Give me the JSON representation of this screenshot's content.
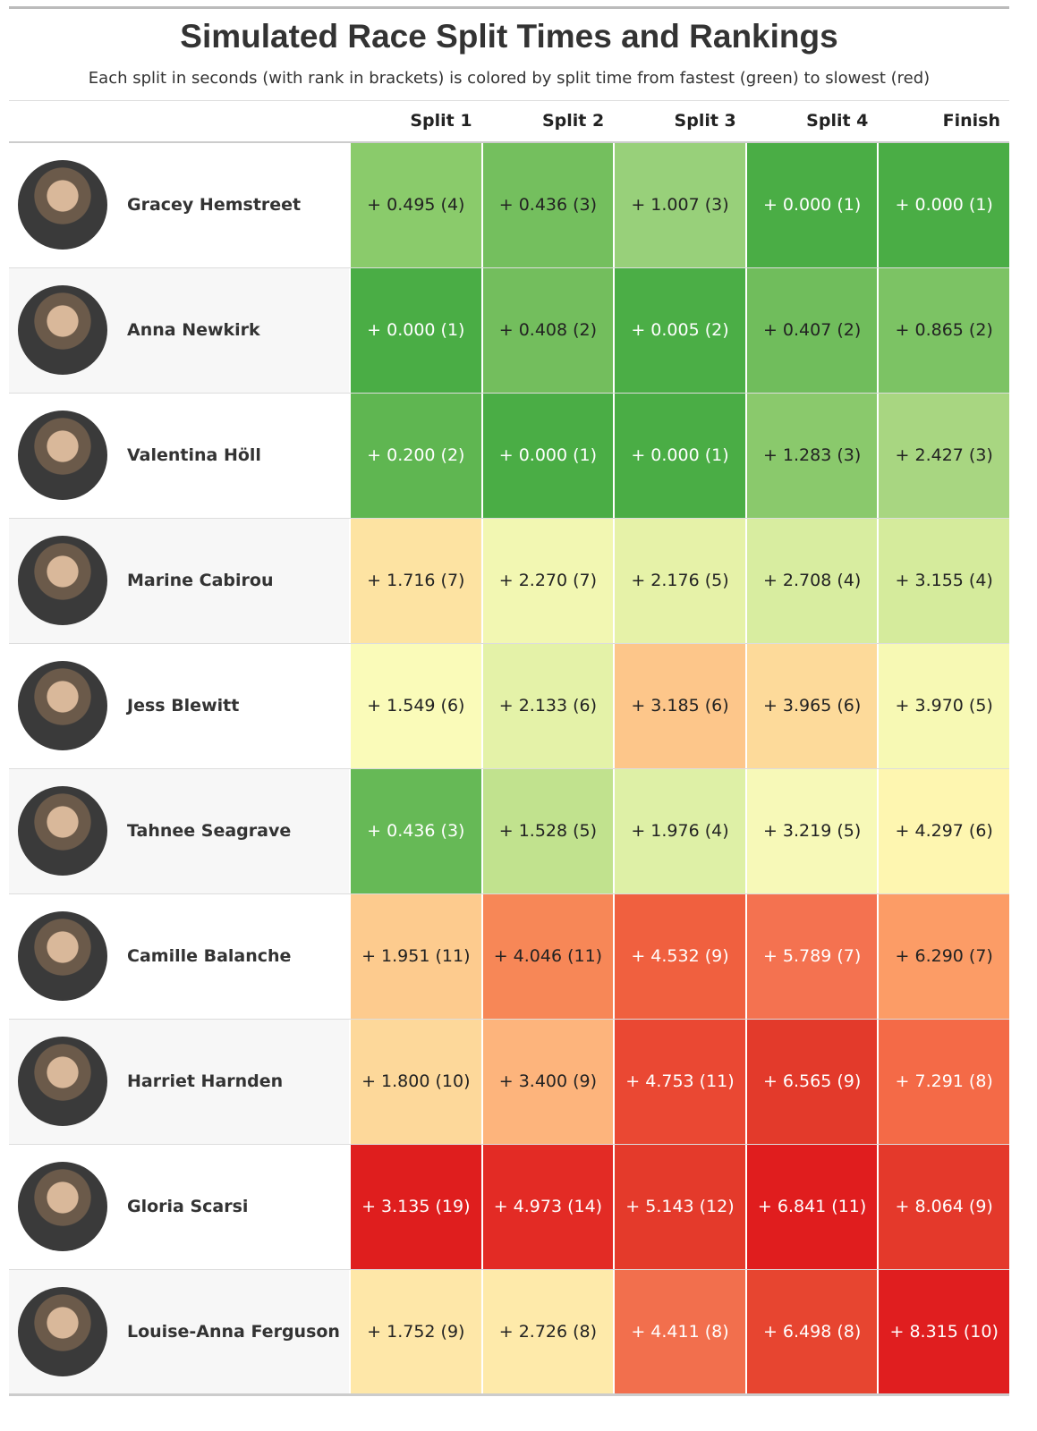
{
  "title": "Simulated Race Split Times and Rankings",
  "subtitle": "Each split in seconds (with rank in brackets) is colored by split time from fastest (green) to slowest (red)",
  "columns": [
    "Split 1",
    "Split 2",
    "Split 3",
    "Split 4",
    "Finish"
  ],
  "rows": [
    {
      "name": "Gracey Hemstreet",
      "cells": [
        "+ 0.495 (4)",
        "+ 0.436 (3)",
        "+ 1.007 (3)",
        "+ 0.000 (1)",
        "+ 0.000 (1)"
      ],
      "colors": [
        "#8acb6b",
        "#74bf5e",
        "#98d07a",
        "#4aad45",
        "#4aad45"
      ]
    },
    {
      "name": "Anna Newkirk",
      "cells": [
        "+ 0.000 (1)",
        "+ 0.408 (2)",
        "+ 0.005 (2)",
        "+ 0.407 (2)",
        "+ 0.865 (2)"
      ],
      "colors": [
        "#4aad45",
        "#73be5d",
        "#4bae46",
        "#70bd5c",
        "#7cc364"
      ]
    },
    {
      "name": "Valentina Höll",
      "cells": [
        "+ 0.200 (2)",
        "+ 0.000 (1)",
        "+ 0.000 (1)",
        "+ 1.283 (3)",
        "+ 2.427 (3)"
      ],
      "colors": [
        "#5fb651",
        "#4aad45",
        "#4aad45",
        "#8ac96c",
        "#a8d681"
      ]
    },
    {
      "name": "Marine Cabirou",
      "cells": [
        "+ 1.716 (7)",
        "+ 2.270 (7)",
        "+ 2.176 (5)",
        "+ 2.708 (4)",
        "+ 3.155 (4)"
      ],
      "colors": [
        "#fde3a2",
        "#f2f7b2",
        "#e6f2a8",
        "#d8eda0",
        "#d5eb9c"
      ]
    },
    {
      "name": "Jess Blewitt",
      "cells": [
        "+ 1.549 (6)",
        "+ 2.133 (6)",
        "+ 3.185 (6)",
        "+ 3.965 (6)",
        "+ 3.970 (5)"
      ],
      "colors": [
        "#fafbb9",
        "#e4f2a8",
        "#fdc68a",
        "#fdda9a",
        "#f7f9b4"
      ]
    },
    {
      "name": "Tahnee Seagrave",
      "cells": [
        "+ 0.436 (3)",
        "+ 1.528 (5)",
        "+ 1.976 (4)",
        "+ 3.219 (5)",
        "+ 4.297 (6)"
      ],
      "colors": [
        "#66b956",
        "#c1e28e",
        "#def0a6",
        "#f7f9b8",
        "#fef6b0"
      ]
    },
    {
      "name": "Camille Balanche",
      "cells": [
        "+ 1.951 (11)",
        "+ 4.046 (11)",
        "+ 4.532 (9)",
        "+ 5.789 (7)",
        "+ 6.290 (7)"
      ],
      "colors": [
        "#fdcb8e",
        "#f78757",
        "#f0603f",
        "#f47250",
        "#fc9c66"
      ]
    },
    {
      "name": "Harriet Harnden",
      "cells": [
        "+ 1.800 (10)",
        "+ 3.400 (9)",
        "+ 4.753 (11)",
        "+ 6.565 (9)",
        "+ 7.291 (8)"
      ],
      "colors": [
        "#fdd89a",
        "#fdb47c",
        "#ea4833",
        "#e33a2b",
        "#f46a47"
      ]
    },
    {
      "name": "Gloria Scarsi",
      "cells": [
        "+ 3.135 (19)",
        "+ 4.973 (14)",
        "+ 5.143 (12)",
        "+ 6.841 (11)",
        "+ 8.064 (9)"
      ],
      "colors": [
        "#df1e1e",
        "#e32b25",
        "#e43a2b",
        "#e01d1e",
        "#e4392b"
      ]
    },
    {
      "name": "Louise-Anna Ferguson",
      "cells": [
        "+ 1.752 (9)",
        "+ 2.726 (8)",
        "+ 4.411 (8)",
        "+ 6.498 (8)",
        "+ 8.315 (10)"
      ],
      "colors": [
        "#fee7a8",
        "#feeaaa",
        "#f26f4d",
        "#e74530",
        "#e01e1f"
      ]
    }
  ]
}
